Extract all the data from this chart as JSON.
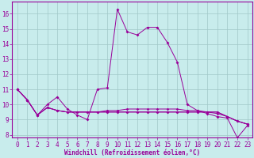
{
  "xlabel": "Windchill (Refroidissement éolien,°C)",
  "background_color": "#c8ecec",
  "grid_color": "#a0c8c8",
  "line_color": "#990099",
  "xlim": [
    -0.5,
    23.5
  ],
  "ylim": [
    7.8,
    16.8
  ],
  "yticks": [
    8,
    9,
    10,
    11,
    12,
    13,
    14,
    15,
    16
  ],
  "xticks": [
    0,
    1,
    2,
    3,
    4,
    5,
    6,
    7,
    8,
    9,
    10,
    11,
    12,
    13,
    14,
    15,
    16,
    17,
    18,
    19,
    20,
    21,
    22,
    23
  ],
  "main_series": [
    11.0,
    10.3,
    9.3,
    10.0,
    10.5,
    9.7,
    9.3,
    9.0,
    11.0,
    11.1,
    16.3,
    14.8,
    14.6,
    15.1,
    15.1,
    14.1,
    12.8,
    10.0,
    9.6,
    9.4,
    9.2,
    9.1,
    7.8,
    8.6
  ],
  "flat_series": [
    [
      11.0,
      10.3,
      9.3,
      9.8,
      9.6,
      9.5,
      9.5,
      9.5,
      9.5,
      9.5,
      9.5,
      9.5,
      9.5,
      9.5,
      9.5,
      9.5,
      9.5,
      9.5,
      9.5,
      9.5,
      9.5,
      9.2,
      8.9,
      8.7
    ],
    [
      11.0,
      10.3,
      9.3,
      9.8,
      9.6,
      9.5,
      9.5,
      9.5,
      9.5,
      9.6,
      9.6,
      9.7,
      9.7,
      9.7,
      9.7,
      9.7,
      9.7,
      9.6,
      9.6,
      9.5,
      9.4,
      9.2,
      8.9,
      8.7
    ],
    [
      11.0,
      10.3,
      9.3,
      9.8,
      9.6,
      9.5,
      9.5,
      9.5,
      9.5,
      9.5,
      9.5,
      9.5,
      9.5,
      9.5,
      9.5,
      9.5,
      9.5,
      9.5,
      9.5,
      9.5,
      9.5,
      9.2,
      8.9,
      8.7
    ]
  ],
  "xlabel_fontsize": 5.5,
  "tick_fontsize": 5.5
}
